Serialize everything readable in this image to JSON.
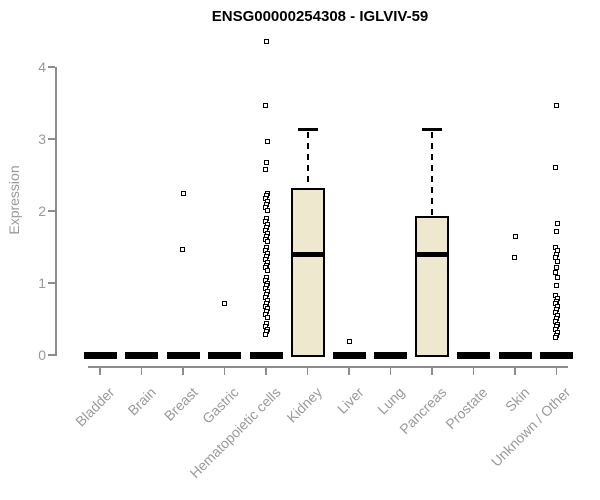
{
  "chart_data": {
    "type": "boxplot",
    "title": "ENSG00000254308 - IGLVIV-59",
    "ylabel": "Expression",
    "xlabel": "",
    "ylim": [
      0,
      4.4
    ],
    "yticks": [
      0,
      1,
      2,
      3,
      4
    ],
    "grid": false,
    "legend": null,
    "categories": [
      "Bladder",
      "Brain",
      "Breast",
      "Gastric",
      "Hematopoietic cells",
      "Kidney",
      "Liver",
      "Lung",
      "Pancreas",
      "Prostate",
      "Skin",
      "Unknown / Other"
    ],
    "boxes": [
      {
        "category": "Bladder",
        "min": 0,
        "q1": 0,
        "median": 0,
        "q3": 0,
        "max": 0,
        "outliers": []
      },
      {
        "category": "Brain",
        "min": 0,
        "q1": 0,
        "median": 0,
        "q3": 0,
        "max": 0,
        "outliers": []
      },
      {
        "category": "Breast",
        "min": 0,
        "q1": 0,
        "median": 0,
        "q3": 0,
        "max": 0,
        "outliers": [
          2.25,
          1.47
        ]
      },
      {
        "category": "Gastric",
        "min": 0,
        "q1": 0,
        "median": 0,
        "q3": 0,
        "max": 0,
        "outliers": [
          0.71
        ]
      },
      {
        "category": "Hematopoietic cells",
        "min": 0,
        "q1": 0,
        "median": 0,
        "q3": 0,
        "max": 0,
        "outliers": [
          4.35,
          3.47,
          2.96,
          2.68,
          2.58,
          2.25,
          2.21,
          2.17,
          2.13,
          2.09,
          2.05,
          2.01,
          1.89,
          1.85,
          1.81,
          1.77,
          1.73,
          1.69,
          1.65,
          1.61,
          1.57,
          1.49,
          1.45,
          1.41,
          1.37,
          1.33,
          1.29,
          1.25,
          1.21,
          1.17,
          1.08,
          1.04,
          1.0,
          0.96,
          0.92,
          0.88,
          0.84,
          0.8,
          0.76,
          0.72,
          0.68,
          0.64,
          0.6,
          0.56,
          0.52,
          0.44,
          0.4,
          0.36,
          0.32,
          0.28
        ]
      },
      {
        "category": "Kidney",
        "min": 0,
        "q1": 0,
        "median": 1.39,
        "q3": 2.32,
        "max": 3.13,
        "outliers": []
      },
      {
        "category": "Liver",
        "min": 0,
        "q1": 0,
        "median": 0,
        "q3": 0,
        "max": 0,
        "outliers": [
          0.19
        ]
      },
      {
        "category": "Lung",
        "min": 0,
        "q1": 0,
        "median": 0,
        "q3": 0,
        "max": 0,
        "outliers": []
      },
      {
        "category": "Pancreas",
        "min": 0,
        "q1": 0,
        "median": 1.39,
        "q3": 1.93,
        "max": 3.13,
        "outliers": []
      },
      {
        "category": "Prostate",
        "min": 0,
        "q1": 0,
        "median": 0,
        "q3": 0,
        "max": 0,
        "outliers": []
      },
      {
        "category": "Skin",
        "min": 0,
        "q1": 0,
        "median": 0,
        "q3": 0,
        "max": 0,
        "outliers": [
          1.64,
          1.35
        ]
      },
      {
        "category": "Unknown / Other",
        "min": 0,
        "q1": 0,
        "median": 0,
        "q3": 0,
        "max": 0,
        "outliers": [
          3.46,
          2.61,
          1.82,
          1.71,
          1.5,
          1.45,
          1.4,
          1.35,
          1.3,
          1.22,
          1.15,
          1.07,
          0.97,
          0.83,
          0.79,
          0.75,
          0.71,
          0.67,
          0.63,
          0.59,
          0.55,
          0.51,
          0.47,
          0.43,
          0.39,
          0.35,
          0.31,
          0.27,
          0.24
        ]
      }
    ],
    "colors": {
      "box_fill": "#EDE8CE",
      "box_border": "#000000",
      "median": "#000000",
      "flat_bar": "#000000",
      "axis": "#8c8c8c",
      "tick_text": "#9a9a9a",
      "title_text": "#000000",
      "background": "#ffffff"
    }
  }
}
